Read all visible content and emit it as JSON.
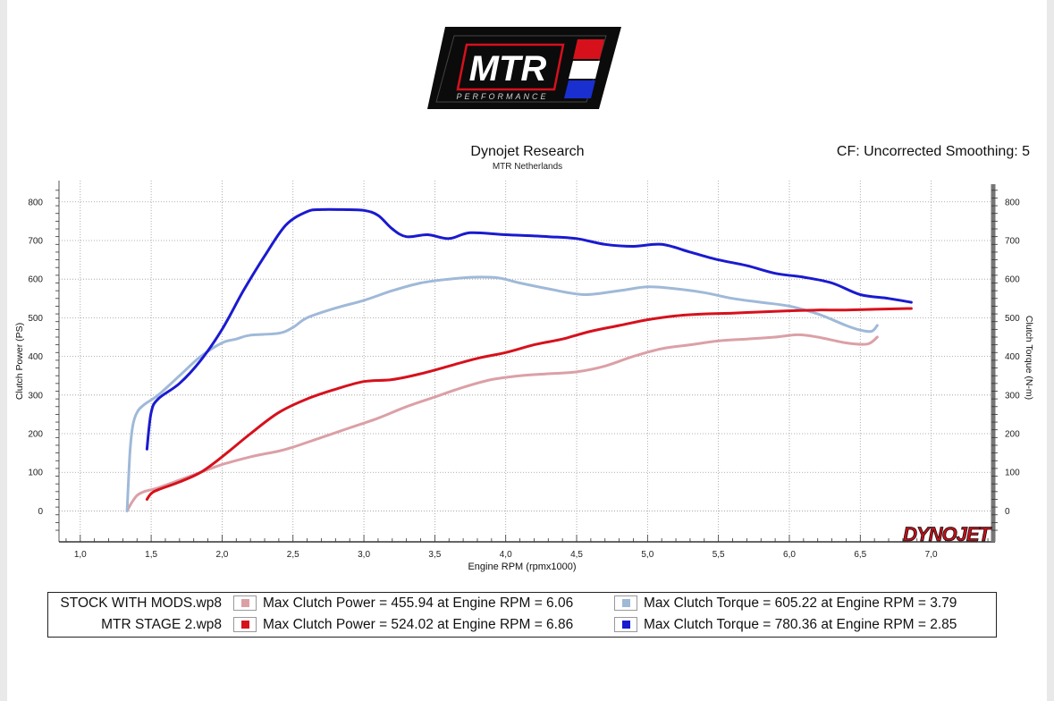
{
  "logo": {
    "name": "MTR",
    "tagline": "PERFORMANCE"
  },
  "header": {
    "title": "Dynojet Research",
    "subtitle": "MTR Netherlands",
    "correction": "CF: Uncorrected Smoothing: 5"
  },
  "brand": {
    "dynojet": "DYNOJET"
  },
  "legend": {
    "rows": [
      {
        "file": "STOCK WITH MODS.wp8",
        "power": "Max Clutch Power = 455.94 at Engine RPM = 6.06",
        "torque": "Max Clutch Torque = 605.22 at Engine RPM = 3.79"
      },
      {
        "file": "MTR STAGE 2.wp8",
        "power": "Max Clutch Power = 524.02 at Engine RPM = 6.86",
        "torque": "Max Clutch Torque = 780.36 at Engine RPM = 2.85"
      }
    ]
  },
  "colors": {
    "stock_power": "#dba0a6",
    "stock_torque": "#9fb9d8",
    "stage2_power": "#d6111c",
    "stage2_torque": "#1a1ad0"
  },
  "chart_data": {
    "type": "line",
    "xlabel": "Engine RPM (rpmx1000)",
    "ylabel": "Clutch Power (PS)",
    "y2label": "Clutch Torque (N-m)",
    "xlim": [
      0.85,
      7.45
    ],
    "ylim": [
      -80,
      855
    ],
    "x_ticks": [
      "1,0",
      "1,5",
      "2,0",
      "2,5",
      "3,0",
      "3,5",
      "4,0",
      "4,5",
      "5,0",
      "5,5",
      "6,0",
      "6,5",
      "7,0"
    ],
    "y_ticks": [
      0,
      100,
      200,
      300,
      400,
      500,
      600,
      700,
      800
    ],
    "y2_ticks": [
      0,
      100,
      200,
      300,
      400,
      500,
      600,
      700,
      800
    ],
    "grid": true,
    "series": [
      {
        "name": "STOCK WITH MODS.wp8",
        "color_key": "stock_power",
        "x": [
          1.33,
          1.36,
          1.4,
          1.45,
          1.55,
          1.7,
          1.85,
          2.0,
          2.2,
          2.4,
          2.5,
          2.7,
          2.9,
          3.1,
          3.3,
          3.5,
          3.7,
          3.9,
          4.1,
          4.3,
          4.5,
          4.7,
          4.9,
          5.1,
          5.3,
          5.5,
          5.7,
          5.9,
          6.06,
          6.2,
          6.4,
          6.55,
          6.62
        ],
        "values": [
          0,
          20,
          40,
          50,
          60,
          80,
          100,
          120,
          140,
          155,
          165,
          190,
          215,
          240,
          270,
          295,
          320,
          340,
          350,
          355,
          360,
          375,
          400,
          420,
          430,
          440,
          445,
          450,
          456,
          450,
          435,
          432,
          450
        ]
      },
      {
        "name": "STOCK WITH MODS.wp8",
        "color_key": "stock_torque",
        "x": [
          1.33,
          1.35,
          1.37,
          1.4,
          1.45,
          1.55,
          1.7,
          1.85,
          2.0,
          2.1,
          2.2,
          2.4,
          2.5,
          2.6,
          2.8,
          3.0,
          3.2,
          3.4,
          3.6,
          3.79,
          3.95,
          4.1,
          4.3,
          4.55,
          4.8,
          5.0,
          5.2,
          5.4,
          5.6,
          5.8,
          6.0,
          6.2,
          6.4,
          6.5,
          6.58,
          6.62
        ],
        "values": [
          0,
          150,
          220,
          255,
          275,
          300,
          350,
          400,
          435,
          445,
          455,
          460,
          475,
          500,
          525,
          545,
          570,
          590,
          600,
          605,
          603,
          590,
          575,
          560,
          570,
          580,
          575,
          565,
          550,
          540,
          530,
          510,
          480,
          468,
          465,
          480
        ]
      },
      {
        "name": "MTR STAGE 2.wp8",
        "color_key": "stage2_power",
        "x": [
          1.47,
          1.5,
          1.55,
          1.7,
          1.85,
          2.0,
          2.2,
          2.4,
          2.6,
          2.8,
          3.0,
          3.2,
          3.4,
          3.6,
          3.8,
          4.0,
          4.2,
          4.4,
          4.6,
          4.8,
          5.0,
          5.2,
          5.4,
          5.6,
          5.8,
          6.0,
          6.2,
          6.4,
          6.6,
          6.86
        ],
        "values": [
          30,
          45,
          55,
          75,
          100,
          140,
          200,
          255,
          290,
          315,
          335,
          340,
          355,
          375,
          395,
          410,
          430,
          445,
          465,
          480,
          495,
          505,
          510,
          512,
          515,
          518,
          520,
          520,
          522,
          524
        ]
      },
      {
        "name": "MTR STAGE 2.wp8",
        "color_key": "stage2_torque",
        "x": [
          1.47,
          1.5,
          1.55,
          1.7,
          1.85,
          2.0,
          2.15,
          2.3,
          2.45,
          2.6,
          2.7,
          2.85,
          3.0,
          3.1,
          3.2,
          3.3,
          3.45,
          3.6,
          3.75,
          4.0,
          4.3,
          4.5,
          4.7,
          4.9,
          5.1,
          5.3,
          5.5,
          5.7,
          5.9,
          6.1,
          6.3,
          6.5,
          6.7,
          6.86
        ],
        "values": [
          160,
          255,
          290,
          330,
          390,
          470,
          570,
          660,
          740,
          775,
          780,
          780,
          778,
          765,
          730,
          710,
          715,
          705,
          720,
          715,
          710,
          705,
          690,
          685,
          690,
          670,
          650,
          635,
          615,
          605,
          590,
          560,
          550,
          540
        ]
      }
    ]
  }
}
